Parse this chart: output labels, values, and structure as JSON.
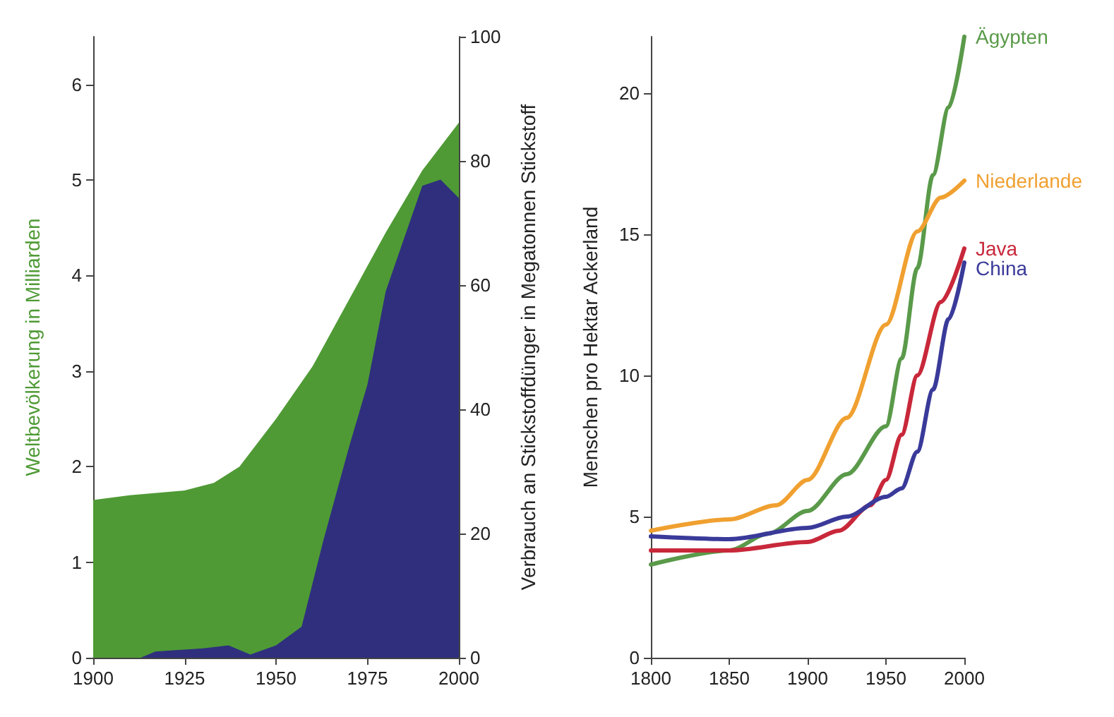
{
  "chart_data": [
    {
      "type": "area",
      "ylabel": "Weltbevölkerung in Milliarden",
      "y2label": "Verbrauch an Stickstoffdünger in Megatonnen Stickstoff",
      "xlim": [
        1900,
        2000
      ],
      "xticks": [
        1900,
        1925,
        1950,
        1975,
        2000
      ],
      "ylim": [
        0,
        6.5
      ],
      "yticks": [
        0,
        1,
        2,
        3,
        4,
        5,
        6
      ],
      "y2lim": [
        0,
        100
      ],
      "y2ticks": [
        0,
        20,
        40,
        60,
        80,
        100
      ],
      "series": [
        {
          "color": "#4f9a35",
          "x": [
            1900,
            1910,
            1925,
            1933,
            1940,
            1950,
            1960,
            1970,
            1980,
            1990,
            2000
          ],
          "values": [
            1.65,
            1.7,
            1.75,
            1.83,
            2.0,
            2.5,
            3.05,
            3.75,
            4.45,
            5.1,
            5.6
          ]
        },
        {
          "color": "#2f2f7e",
          "axis": "y2",
          "x": [
            1900,
            1913,
            1917,
            1930,
            1937,
            1943,
            1950,
            1957,
            1963,
            1970,
            1975,
            1980,
            1990,
            1995,
            2000
          ],
          "values": [
            0,
            0,
            1,
            1.5,
            2,
            0.5,
            2,
            5,
            19,
            34,
            44,
            59,
            76,
            77,
            74
          ]
        }
      ]
    },
    {
      "type": "line",
      "ylabel": "Menschen pro Hektar Ackerland",
      "xlim": [
        1800,
        2000
      ],
      "xticks": [
        1800,
        1850,
        1900,
        1950,
        2000
      ],
      "ylim": [
        0,
        22
      ],
      "yticks": [
        0,
        5,
        10,
        15,
        20
      ],
      "series": [
        {
          "name": "Ägypten",
          "color": "#5a9a4a",
          "x": [
            1800,
            1850,
            1875,
            1900,
            1925,
            1950,
            1960,
            1970,
            1980,
            1990,
            2000
          ],
          "values": [
            3.3,
            3.8,
            4.4,
            5.2,
            6.5,
            8.2,
            10.6,
            13.8,
            17.1,
            19.5,
            22
          ]
        },
        {
          "name": "Niederlande",
          "color": "#f0a030",
          "x": [
            1800,
            1850,
            1880,
            1900,
            1925,
            1950,
            1970,
            1985,
            2000
          ],
          "values": [
            4.5,
            4.9,
            5.4,
            6.3,
            8.5,
            11.8,
            15.1,
            16.3,
            16.9
          ]
        },
        {
          "name": "Java",
          "color": "#c8283a",
          "x": [
            1800,
            1850,
            1900,
            1920,
            1940,
            1950,
            1960,
            1970,
            1985,
            2000
          ],
          "values": [
            3.8,
            3.8,
            4.1,
            4.5,
            5.4,
            6.3,
            7.9,
            10,
            12.6,
            14.5
          ]
        },
        {
          "name": "China",
          "color": "#3a3a9a",
          "x": [
            1800,
            1850,
            1900,
            1925,
            1950,
            1960,
            1970,
            1980,
            1990,
            2000
          ],
          "values": [
            4.3,
            4.2,
            4.6,
            5.0,
            5.7,
            6.0,
            7.3,
            9.5,
            12,
            14
          ]
        }
      ]
    }
  ]
}
